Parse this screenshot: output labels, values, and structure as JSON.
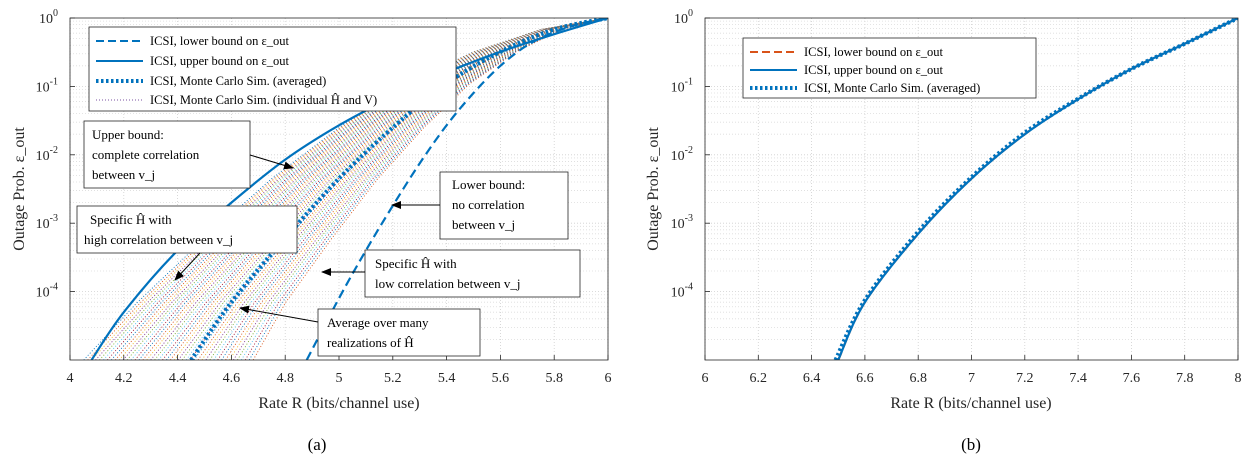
{
  "chart_data": [
    {
      "panel": "a",
      "type": "line",
      "caption": "(a)",
      "xlabel": "Rate R (bits/channel use)",
      "ylabel": "Outage Prob. ε_out",
      "xlim": [
        4,
        6
      ],
      "ylim": [
        1e-05,
        1
      ],
      "yscale": "log",
      "grid": true,
      "legend_position": "top-left",
      "xticks": [
        "4",
        "4.2",
        "4.4",
        "4.6",
        "4.8",
        "5",
        "5.2",
        "5.4",
        "5.6",
        "5.8",
        "6"
      ],
      "yticks": [
        "10^-4",
        "10^-3",
        "10^-2",
        "10^-1",
        "10^0"
      ],
      "series": [
        {
          "name": "ICSI, lower bound on ε_out",
          "style": "dashed",
          "color": "#0072BD",
          "x": [
            4.88,
            5.0,
            5.1,
            5.2,
            5.3,
            5.4,
            5.5,
            5.6,
            5.7,
            5.8,
            5.9,
            6.0
          ],
          "y": [
            1e-05,
            8e-05,
            0.0004,
            0.0018,
            0.0075,
            0.027,
            0.08,
            0.2,
            0.4,
            0.62,
            0.83,
            1.0
          ]
        },
        {
          "name": "ICSI, upper bound on ε_out",
          "style": "solid",
          "color": "#0072BD",
          "x": [
            4.08,
            4.2,
            4.4,
            4.6,
            4.8,
            5.0,
            5.2,
            5.4,
            5.6,
            5.8,
            6.0
          ],
          "y": [
            1e-05,
            5e-05,
            0.0004,
            0.002,
            0.0085,
            0.027,
            0.07,
            0.16,
            0.32,
            0.58,
            1.0
          ]
        },
        {
          "name": "ICSI, Monte Carlo Sim. (averaged)",
          "style": "dotted-thick",
          "color": "#0072BD",
          "x": [
            4.45,
            4.6,
            4.8,
            5.0,
            5.2,
            5.4,
            5.6,
            5.8,
            6.0
          ],
          "y": [
            1e-05,
            7e-05,
            0.0006,
            0.0045,
            0.025,
            0.11,
            0.32,
            0.68,
            1.0
          ]
        },
        {
          "name": "ICSI, Monte Carlo Sim. (individual Ĥ and V)",
          "style": "dotted-thin",
          "color": "multicolor"
        }
      ],
      "annotations": [
        {
          "lines": [
            "Upper bound:",
            "complete correlation",
            "between v_j"
          ]
        },
        {
          "lines": [
            "Lower bound:",
            "no correlation",
            "between v_j"
          ]
        },
        {
          "lines": [
            "Specific Ĥ with",
            "high correlation between v_j"
          ]
        },
        {
          "lines": [
            "Specific Ĥ with",
            "low correlation between v_j"
          ]
        },
        {
          "lines": [
            "Average over many",
            "realizations of Ĥ"
          ]
        }
      ]
    },
    {
      "panel": "b",
      "type": "line",
      "caption": "(b)",
      "xlabel": "Rate R (bits/channel use)",
      "ylabel": "Outage Prob. ε_out",
      "xlim": [
        6,
        8
      ],
      "ylim": [
        1e-05,
        1
      ],
      "yscale": "log",
      "grid": true,
      "legend_position": "top-left",
      "xticks": [
        "6",
        "6.2",
        "6.4",
        "6.6",
        "6.8",
        "7",
        "7.2",
        "7.4",
        "7.6",
        "7.8",
        "8"
      ],
      "yticks": [
        "10^-4",
        "10^-3",
        "10^-2",
        "10^-1",
        "10^0"
      ],
      "series": [
        {
          "name": "ICSI, lower bound on ε_out",
          "style": "dashed",
          "color": "#D95319",
          "x": [
            6.5,
            6.6,
            6.8,
            7.0,
            7.2,
            7.4,
            7.6,
            7.8,
            8.0
          ],
          "y": [
            1e-05,
            7e-05,
            0.0007,
            0.0045,
            0.02,
            0.065,
            0.18,
            0.42,
            1.0
          ]
        },
        {
          "name": "ICSI, upper bound on ε_out",
          "style": "solid",
          "color": "#0072BD",
          "x": [
            6.5,
            6.6,
            6.8,
            7.0,
            7.2,
            7.4,
            7.6,
            7.8,
            8.0
          ],
          "y": [
            1e-05,
            7e-05,
            0.0007,
            0.0045,
            0.02,
            0.065,
            0.18,
            0.42,
            1.0
          ]
        },
        {
          "name": "ICSI, Monte Carlo Sim. (averaged)",
          "style": "dotted-thick",
          "color": "#0072BD",
          "x": [
            6.49,
            6.6,
            6.8,
            7.0,
            7.2,
            7.4,
            7.6,
            7.8,
            8.0
          ],
          "y": [
            1e-05,
            7.5e-05,
            0.00075,
            0.0047,
            0.021,
            0.066,
            0.18,
            0.42,
            1.0
          ]
        }
      ]
    }
  ]
}
